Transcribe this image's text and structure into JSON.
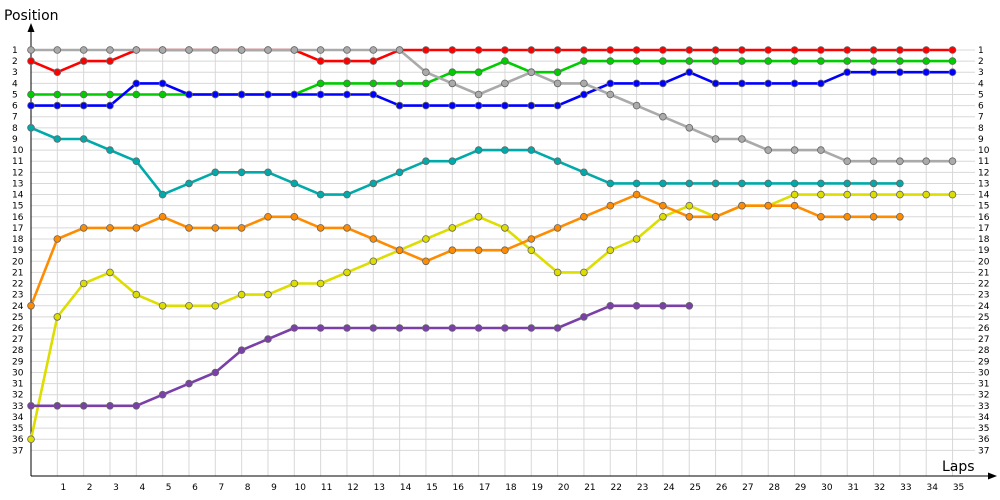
{
  "chart_data": {
    "type": "line",
    "title": "",
    "xlabel": "Laps",
    "ylabel": "Position",
    "xlim": [
      0,
      35
    ],
    "ylim": [
      1,
      37
    ],
    "y_inverted": true,
    "grid": true,
    "x_ticks": [
      "1",
      "2",
      "3",
      "4",
      "5",
      "6",
      "7",
      "8",
      "9",
      "10",
      "11",
      "12",
      "13",
      "14",
      "15",
      "16",
      "17",
      "18",
      "19",
      "20",
      "21",
      "22",
      "23",
      "24",
      "25",
      "26",
      "27",
      "28",
      "29",
      "30",
      "31",
      "32",
      "33",
      "34",
      "35"
    ],
    "y_ticks": [
      "1",
      "2",
      "3",
      "4",
      "5",
      "6",
      "7",
      "8",
      "9",
      "10",
      "11",
      "12",
      "13",
      "14",
      "15",
      "16",
      "17",
      "18",
      "19",
      "20",
      "21",
      "22",
      "23",
      "24",
      "25",
      "26",
      "27",
      "28",
      "29",
      "30",
      "31",
      "32",
      "33",
      "34",
      "35",
      "36",
      "37"
    ],
    "series": [
      {
        "color": "#ff0000",
        "x": [
          0,
          1,
          2,
          3,
          4,
          5,
          6,
          7,
          8,
          9,
          10,
          11,
          12,
          13,
          14,
          15,
          16,
          17,
          18,
          19,
          20,
          21,
          22,
          23,
          24,
          25,
          26,
          27,
          28,
          29,
          30,
          31,
          32,
          33,
          34,
          35
        ],
        "y": [
          2,
          3,
          2,
          2,
          1,
          1,
          1,
          1,
          1,
          1,
          1,
          2,
          2,
          2,
          1,
          1,
          1,
          1,
          1,
          1,
          1,
          1,
          1,
          1,
          1,
          1,
          1,
          1,
          1,
          1,
          1,
          1,
          1,
          1,
          1,
          1
        ]
      },
      {
        "color": "#00cc00",
        "x": [
          0,
          1,
          2,
          3,
          4,
          5,
          6,
          7,
          8,
          9,
          10,
          11,
          12,
          13,
          14,
          15,
          16,
          17,
          18,
          19,
          20,
          21,
          22,
          23,
          24,
          25,
          26,
          27,
          28,
          29,
          30,
          31,
          32,
          33,
          34,
          35
        ],
        "y": [
          5,
          5,
          5,
          5,
          5,
          5,
          5,
          5,
          5,
          5,
          5,
          4,
          4,
          4,
          4,
          4,
          3,
          3,
          2,
          3,
          3,
          2,
          2,
          2,
          2,
          2,
          2,
          2,
          2,
          2,
          2,
          2,
          2,
          2,
          2,
          2
        ]
      },
      {
        "color": "#0000ff",
        "x": [
          0,
          1,
          2,
          3,
          4,
          5,
          6,
          7,
          8,
          9,
          10,
          11,
          12,
          13,
          14,
          15,
          16,
          17,
          18,
          19,
          20,
          21,
          22,
          23,
          24,
          25,
          26,
          27,
          28,
          29,
          30,
          31,
          32,
          33,
          34,
          35
        ],
        "y": [
          6,
          6,
          6,
          6,
          4,
          4,
          5,
          5,
          5,
          5,
          5,
          5,
          5,
          5,
          6,
          6,
          6,
          6,
          6,
          6,
          6,
          5,
          4,
          4,
          4,
          3,
          4,
          4,
          4,
          4,
          4,
          3,
          3,
          3,
          3,
          3
        ]
      },
      {
        "color": "#aaaaaa",
        "x": [
          0,
          1,
          2,
          3,
          4,
          5,
          6,
          7,
          8,
          9,
          10,
          11,
          12,
          13,
          14,
          15,
          16,
          17,
          18,
          19,
          20,
          21,
          22,
          23,
          24,
          25,
          26,
          27,
          28,
          29,
          30,
          31,
          32,
          33,
          34,
          35
        ],
        "y": [
          1,
          1,
          1,
          1,
          1,
          1,
          1,
          1,
          1,
          1,
          1,
          1,
          1,
          1,
          1,
          3,
          4,
          5,
          4,
          3,
          4,
          4,
          5,
          6,
          7,
          8,
          9,
          9,
          10,
          10,
          10,
          11,
          11,
          11,
          11,
          11
        ]
      },
      {
        "color": "#dddd00",
        "x": [
          0,
          1,
          2,
          3,
          4,
          5,
          6,
          7,
          8,
          9,
          10,
          11,
          12,
          13,
          14,
          15,
          16,
          17,
          18,
          19,
          20,
          21,
          22,
          23,
          24,
          25,
          26,
          27,
          28,
          29,
          30,
          31,
          32,
          33,
          34,
          35
        ],
        "y": [
          36,
          25,
          22,
          21,
          23,
          24,
          24,
          24,
          23,
          23,
          22,
          22,
          21,
          20,
          19,
          18,
          17,
          16,
          17,
          19,
          21,
          21,
          19,
          18,
          16,
          15,
          16,
          15,
          15,
          14,
          14,
          14,
          14,
          14,
          14,
          14
        ]
      },
      {
        "color": "#7a3fa8",
        "x": [
          0,
          1,
          2,
          3,
          4,
          5,
          6,
          7,
          8,
          9,
          10,
          11,
          12,
          13,
          14,
          15,
          16,
          17,
          18,
          19,
          20,
          21,
          22,
          23,
          24,
          25
        ],
        "y": [
          33,
          33,
          33,
          33,
          33,
          32,
          31,
          30,
          28,
          27,
          26,
          26,
          26,
          26,
          26,
          26,
          26,
          26,
          26,
          26,
          26,
          25,
          24,
          24,
          24,
          24
        ]
      },
      {
        "color": "#ff8c00",
        "x": [
          0,
          1,
          2,
          3,
          4,
          5,
          6,
          7,
          8,
          9,
          10,
          11,
          12,
          13,
          14,
          15,
          16,
          17,
          18,
          19,
          20,
          21,
          22,
          23,
          24,
          25,
          26,
          27,
          28,
          29,
          30,
          31,
          32,
          33
        ],
        "y": [
          24,
          18,
          17,
          17,
          17,
          16,
          17,
          17,
          17,
          16,
          16,
          17,
          17,
          18,
          19,
          20,
          19,
          19,
          19,
          18,
          17,
          16,
          15,
          14,
          15,
          16,
          16,
          15,
          15,
          15,
          16,
          16,
          16,
          16
        ]
      },
      {
        "color": "#00aaaa",
        "x": [
          0,
          1,
          2,
          3,
          4,
          5,
          6,
          7,
          8,
          9,
          10,
          11,
          12,
          13,
          14,
          15,
          16,
          17,
          18,
          19,
          20,
          21,
          22,
          23,
          24,
          25,
          26,
          27,
          28,
          29,
          30,
          31,
          32,
          33
        ],
        "y": [
          8,
          9,
          9,
          10,
          11,
          14,
          13,
          12,
          12,
          12,
          13,
          14,
          14,
          13,
          12,
          11,
          11,
          10,
          10,
          10,
          11,
          12,
          13,
          13,
          13,
          13,
          13,
          13,
          13,
          13,
          13,
          13,
          13,
          13
        ]
      }
    ]
  }
}
